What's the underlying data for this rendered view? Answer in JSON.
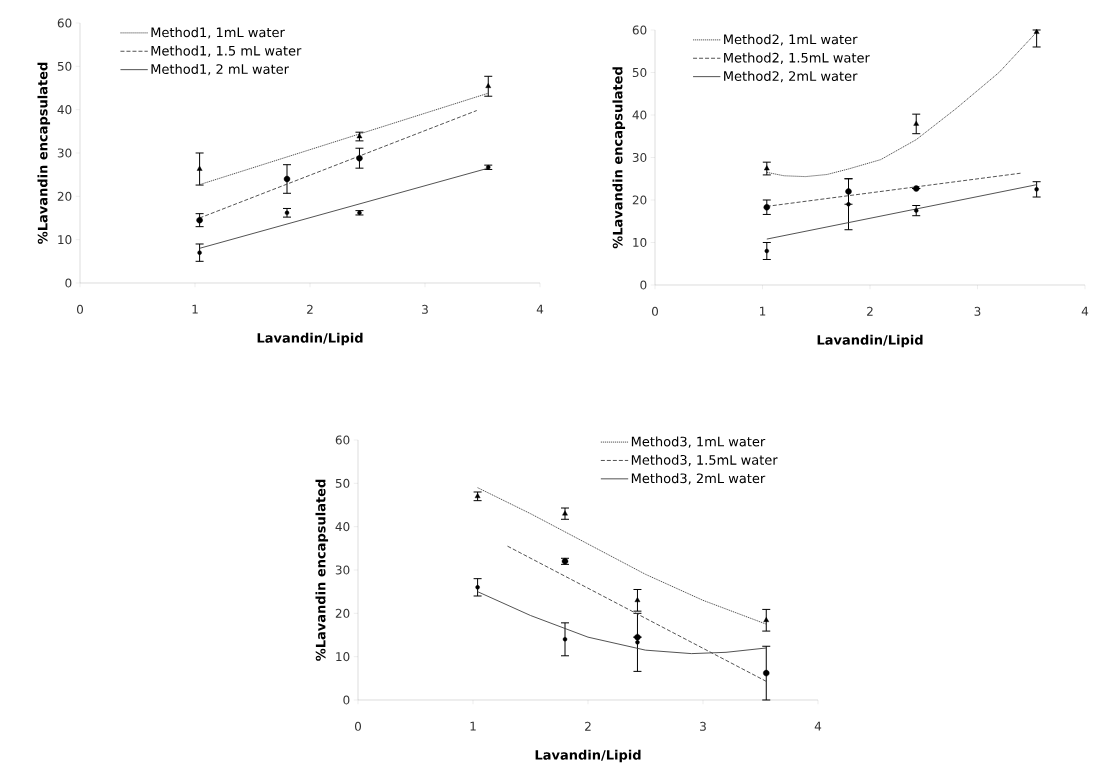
{
  "chart_data": [
    {
      "type": "scatter",
      "xlabel": "Lavandin/Lipid",
      "ylabel": "%Lavandin encapsulated",
      "xlim": [
        0,
        4
      ],
      "ylim": [
        0,
        60
      ],
      "xticks": [
        0,
        1,
        2,
        3,
        4
      ],
      "yticks": [
        0,
        10,
        20,
        30,
        40,
        50,
        60
      ],
      "grid": false,
      "legend": "top left",
      "series": [
        {
          "type": "scatter",
          "marker": "triangle",
          "color": "#000000",
          "x": [
            1.04,
            2.43,
            3.55
          ],
          "values": [
            26.3,
            33.8,
            45.4
          ],
          "errors": [
            3.7,
            1,
            2.3
          ]
        },
        {
          "type": "scatter",
          "marker": "circle",
          "color": "#000000",
          "x": [
            1.04,
            1.8,
            2.43
          ],
          "values": [
            14.5,
            24,
            28.8
          ],
          "errors": [
            1.5,
            3.3,
            2.3
          ]
        },
        {
          "type": "scatter",
          "marker": "none",
          "color": "#000000",
          "x": [
            1.04,
            1.8,
            2.43,
            3.55
          ],
          "values": [
            7,
            16.2,
            16.2,
            26.7
          ],
          "errors": [
            2,
            1,
            0.5,
            0.5
          ]
        },
        {
          "type": "line",
          "name": "Method1, 1mL water",
          "line_style": "dotted",
          "marker": "none",
          "color": "#404040",
          "x": [
            1.04,
            3.55
          ],
          "values": [
            22.7,
            43.8
          ]
        },
        {
          "type": "line",
          "name": "Method1, 1.5 mL water",
          "line_style": "dashed",
          "marker": "none",
          "color": "#404040",
          "x": [
            1.04,
            3.45
          ],
          "values": [
            15,
            39.8
          ]
        },
        {
          "type": "line",
          "name": "Method1, 2 mL water",
          "line_style": "solid",
          "marker": "none",
          "color": "#404040",
          "x": [
            1.04,
            3.55
          ],
          "values": [
            8,
            26.5
          ]
        }
      ]
    },
    {
      "type": "scatter",
      "xlabel": "Lavandin/Lipid",
      "ylabel": "%Lavandin encapsulated",
      "xlim": [
        0,
        4
      ],
      "ylim": [
        0,
        60
      ],
      "xticks": [
        0,
        1,
        2,
        3,
        4
      ],
      "yticks": [
        0,
        10,
        20,
        30,
        40,
        50,
        60
      ],
      "grid": false,
      "legend": "top left",
      "series": [
        {
          "type": "scatter",
          "marker": "triangle",
          "color": "#000000",
          "x": [
            1.04,
            2.43,
            3.55
          ],
          "values": [
            27.4,
            37.9,
            59.5
          ],
          "errors": [
            1.5,
            2.3,
            [
              56,
              60
            ]
          ]
        },
        {
          "type": "scatter",
          "marker": "circle",
          "color": "#000000",
          "x": [
            1.04,
            1.8,
            2.43
          ],
          "values": [
            18.3,
            22,
            22.7
          ],
          "errors": [
            1.7,
            3,
            null
          ]
        },
        {
          "type": "scatter",
          "marker": "none",
          "color": "#000000",
          "x": [
            1.04,
            1.8,
            2.43,
            3.55
          ],
          "values": [
            8,
            19,
            17.5,
            22.5
          ],
          "errors": [
            2,
            6,
            1.2,
            1.8
          ]
        },
        {
          "type": "line",
          "name": "Method2, 1mL water",
          "line_style": "dotted",
          "marker": "none",
          "color": "#404040",
          "x": [
            1.04,
            1.2,
            1.4,
            1.6,
            1.8,
            2.1,
            2.43,
            2.8,
            3.2,
            3.55
          ],
          "values": [
            26.5,
            25.7,
            25.5,
            26,
            27.3,
            29.5,
            34.2,
            41.5,
            50,
            59.5
          ]
        },
        {
          "type": "line",
          "name": "Method2, 1.5mL water",
          "line_style": "dashed",
          "marker": "none",
          "color": "#404040",
          "x": [
            1.04,
            3.4
          ],
          "values": [
            18.5,
            26.3
          ]
        },
        {
          "type": "line",
          "name": "Method2, 2mL water",
          "line_style": "solid",
          "marker": "none",
          "color": "#404040",
          "x": [
            1.04,
            3.55
          ],
          "values": [
            10.8,
            23.6
          ]
        }
      ]
    },
    {
      "type": "scatter",
      "xlabel": "Lavandin/Lipid",
      "ylabel": "%Lavandin encapsulated",
      "xlim": [
        0,
        4
      ],
      "ylim": [
        0,
        60
      ],
      "xticks": [
        0,
        1,
        2,
        3,
        4
      ],
      "yticks": [
        0,
        10,
        20,
        30,
        40,
        50,
        60
      ],
      "grid": false,
      "legend": "top right",
      "series": [
        {
          "type": "scatter",
          "marker": "triangle",
          "color": "#000000",
          "x": [
            1.04,
            1.8,
            2.43,
            3.55
          ],
          "values": [
            47,
            43,
            23,
            18.4
          ],
          "errors": [
            1,
            1.3,
            2.5,
            2.5
          ]
        },
        {
          "type": "scatter",
          "marker": "circle",
          "color": "#000000",
          "x": [
            1.8,
            2.43,
            3.55
          ],
          "values": [
            32,
            14.5,
            6.2
          ],
          "errors": [
            0.7,
            null,
            6.2
          ]
        },
        {
          "type": "scatter",
          "marker": "none",
          "color": "#000000",
          "x": [
            1.04,
            1.8,
            2.43
          ],
          "values": [
            26,
            14,
            13.3
          ],
          "errors": [
            2,
            3.8,
            6.7
          ]
        },
        {
          "type": "line",
          "name": "Method3, 1mL water",
          "line_style": "dotted",
          "marker": "none",
          "color": "#404040",
          "x": [
            1.04,
            1.5,
            2,
            2.5,
            3,
            3.55
          ],
          "values": [
            49,
            43,
            36,
            29,
            23,
            17.5
          ]
        },
        {
          "type": "line",
          "name": "Method3, 1.5mL water",
          "line_style": "dashed",
          "marker": "none",
          "color": "#404040",
          "x": [
            1.3,
            3.55
          ],
          "values": [
            35.5,
            4.3
          ]
        },
        {
          "type": "line",
          "name": "Method3, 2mL water",
          "line_style": "solid",
          "marker": "none",
          "color": "#404040",
          "x": [
            1.04,
            1.5,
            2,
            2.5,
            2.9,
            3.2,
            3.55
          ],
          "values": [
            25,
            19.5,
            14.5,
            11.5,
            10.7,
            11,
            12
          ]
        }
      ]
    }
  ]
}
